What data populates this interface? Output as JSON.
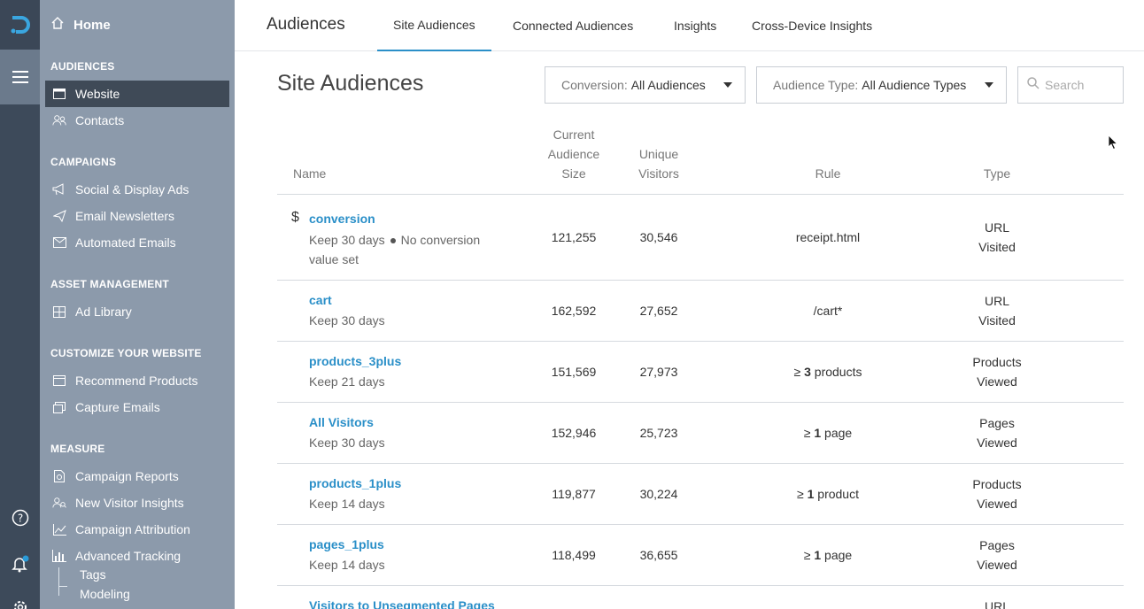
{
  "sidebar": {
    "home": "Home",
    "sections": [
      {
        "title": "AUDIENCES",
        "items": [
          "Website",
          "Contacts"
        ]
      },
      {
        "title": "CAMPAIGNS",
        "items": [
          "Social & Display Ads",
          "Email Newsletters",
          "Automated Emails"
        ]
      },
      {
        "title": "ASSET MANAGEMENT",
        "items": [
          "Ad Library"
        ]
      },
      {
        "title": "CUSTOMIZE YOUR WEBSITE",
        "items": [
          "Recommend Products",
          "Capture Emails"
        ]
      },
      {
        "title": "MEASURE",
        "items": [
          "Campaign Reports",
          "New Visitor Insights",
          "Campaign Attribution",
          "Advanced Tracking"
        ]
      }
    ],
    "subitems": [
      "Tags",
      "Modeling"
    ]
  },
  "topbar": {
    "title": "Audiences",
    "tabs": [
      "Site Audiences",
      "Connected Audiences",
      "Insights",
      "Cross-Device Insights"
    ]
  },
  "page": {
    "title": "Site Audiences",
    "conversion_filter": {
      "label": "Conversion:",
      "value": "All Audiences"
    },
    "type_filter": {
      "label": "Audience Type:",
      "value": "All Audience Types"
    },
    "search_placeholder": "Search"
  },
  "table": {
    "headers": {
      "name": "Name",
      "size": [
        "Current",
        "Audience",
        "Size"
      ],
      "visitors": [
        "Unique",
        "Visitors"
      ],
      "rule": "Rule",
      "type": "Type"
    },
    "rows": [
      {
        "name": "conversion",
        "keep": "Keep 30 days",
        "extra_line1": "No conversion",
        "extra_line2": "value set",
        "size": "121,255",
        "visitors": "30,546",
        "rule": "receipt.html",
        "type1": "URL",
        "type2": "Visited"
      },
      {
        "name": "cart",
        "keep": "Keep 30 days",
        "size": "162,592",
        "visitors": "27,652",
        "rule": "/cart*",
        "type1": "URL",
        "type2": "Visited"
      },
      {
        "name": "products_3plus",
        "keep": "Keep 21 days",
        "size": "151,569",
        "visitors": "27,973",
        "rule_prefix": "≥",
        "rule_num": "3",
        "rule_unit": "products",
        "type1": "Products",
        "type2": "Viewed"
      },
      {
        "name": "All Visitors",
        "keep": "Keep 30 days",
        "size": "152,946",
        "visitors": "25,723",
        "rule_prefix": "≥",
        "rule_num": "1",
        "rule_unit": "page",
        "type1": "Pages",
        "type2": "Viewed"
      },
      {
        "name": "products_1plus",
        "keep": "Keep 14 days",
        "size": "119,877",
        "visitors": "30,224",
        "rule_prefix": "≥",
        "rule_num": "1",
        "rule_unit": "product",
        "type1": "Products",
        "type2": "Viewed"
      },
      {
        "name": "pages_1plus",
        "keep": "Keep 14 days",
        "size": "118,499",
        "visitors": "36,655",
        "rule_prefix": "≥",
        "rule_num": "1",
        "rule_unit": "page",
        "type1": "Pages",
        "type2": "Viewed"
      },
      {
        "name": "Visitors to Unsegmented Pages",
        "type1": "URL"
      }
    ]
  },
  "colors": {
    "accent": "#2a8fc8",
    "sidebar": "#8c9aab",
    "rail": "#3d4a5a",
    "active": "#3f4a57",
    "notification": "#2a9bd8"
  }
}
